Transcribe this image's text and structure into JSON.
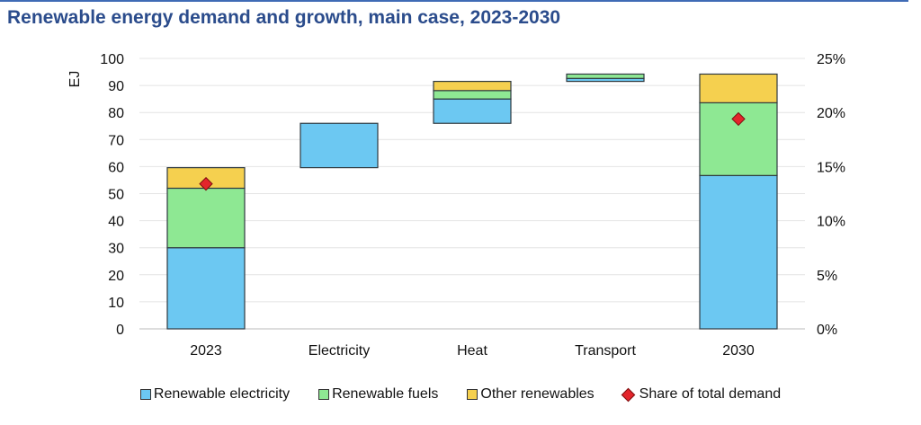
{
  "chart_data": {
    "type": "bar",
    "subtype": "stacked-waterfall",
    "title": "Renewable energy demand and growth, main case, 2023-2030",
    "ylabel": "EJ",
    "ylim": [
      0,
      100
    ],
    "yticks": [
      0,
      10,
      20,
      30,
      40,
      50,
      60,
      70,
      80,
      90,
      100
    ],
    "y2lim": [
      0,
      25
    ],
    "y2ticks": [
      "0%",
      "5%",
      "10%",
      "15%",
      "20%",
      "25%"
    ],
    "grid": true,
    "legend_position": "bottom",
    "categories": [
      "2023",
      "Electricity",
      "Heat",
      "Transport",
      "2030"
    ],
    "series": [
      {
        "name": "Renewable electricity",
        "color": "#6cc8f2"
      },
      {
        "name": "Renewable fuels",
        "color": "#8ee893"
      },
      {
        "name": "Other renewables",
        "color": "#f5d04f"
      },
      {
        "name": "Share of total demand",
        "color": "#e3242b",
        "axis": "right",
        "marker": "diamond"
      }
    ],
    "segments": [
      [
        {
          "series": 0,
          "from": 0,
          "to": 30
        },
        {
          "series": 1,
          "from": 30,
          "to": 52
        },
        {
          "series": 2,
          "from": 52,
          "to": 59.6
        }
      ],
      [
        {
          "series": 0,
          "from": 59.6,
          "to": 76
        }
      ],
      [
        {
          "series": 0,
          "from": 76,
          "to": 85
        },
        {
          "series": 1,
          "from": 85,
          "to": 88.1
        },
        {
          "series": 2,
          "from": 88.1,
          "to": 91.5
        }
      ],
      [
        {
          "series": 0,
          "from": 91.5,
          "to": 92.6
        },
        {
          "series": 1,
          "from": 92.6,
          "to": 94.2
        }
      ],
      [
        {
          "series": 0,
          "from": 0,
          "to": 56.7
        },
        {
          "series": 1,
          "from": 56.7,
          "to": 83.6
        },
        {
          "series": 2,
          "from": 83.6,
          "to": 94.2
        }
      ]
    ],
    "share_of_total_demand": {
      "2023": 13.4,
      "2030": 19.4
    }
  }
}
